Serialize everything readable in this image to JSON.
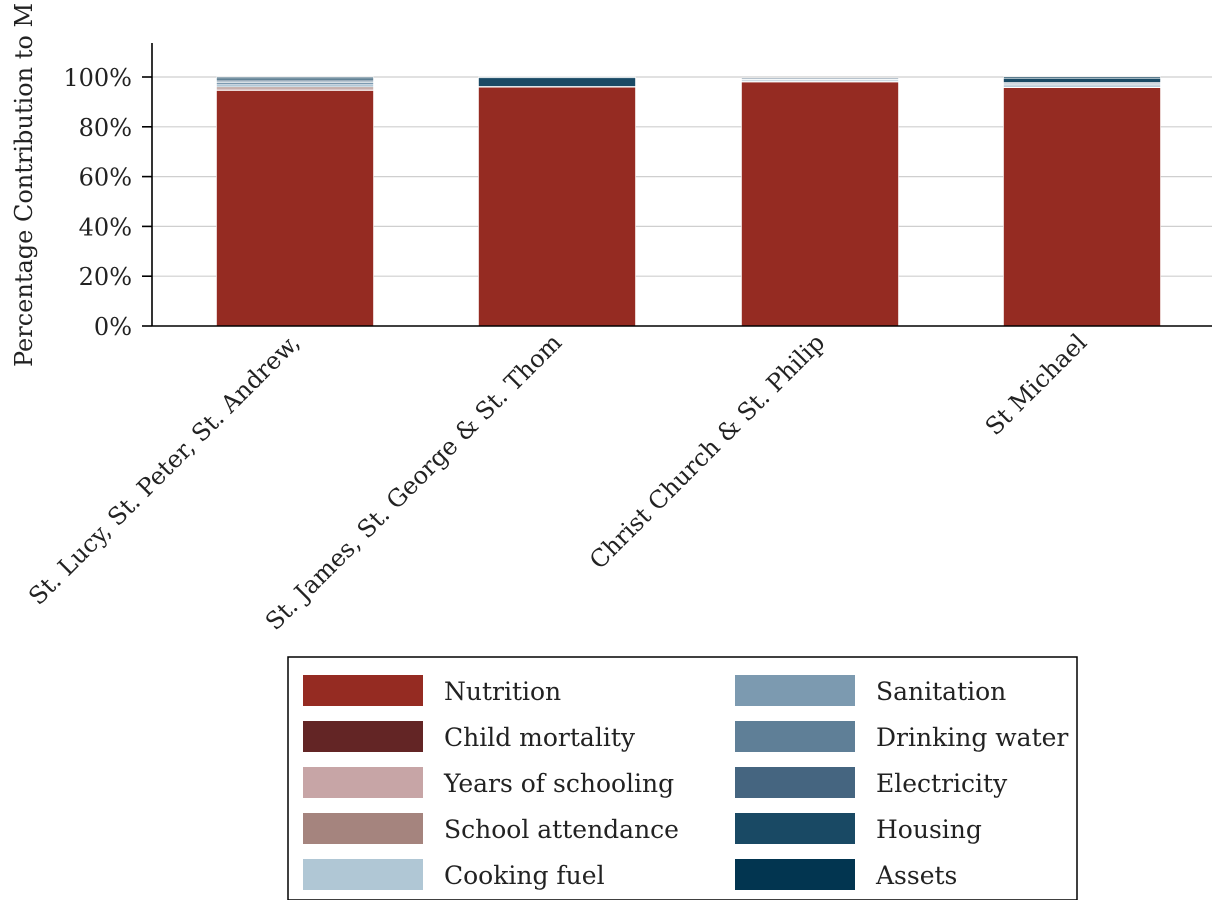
{
  "chart_data": {
    "type": "bar",
    "stacked": true,
    "title": "",
    "xlabel": "",
    "ylabel": "Percentage Contribution to M",
    "ylim": [
      0,
      100
    ],
    "yticks": [
      "0%",
      "20%",
      "40%",
      "60%",
      "80%",
      "100%"
    ],
    "ytick_values": [
      0,
      20,
      40,
      60,
      80,
      100
    ],
    "grid": true,
    "legend_position": "bottom",
    "categories": [
      "St. Lucy, St. Peter, St. Andrew,",
      "St. James, St. George & St. Thom",
      "Christ Church & St. Philip",
      "St Michael"
    ],
    "series": [
      {
        "name": "Nutrition",
        "color": "#952b22",
        "values": [
          94.6,
          96.0,
          98.0,
          95.8
        ]
      },
      {
        "name": "Child mortality",
        "color": "#632525",
        "values": [
          0.0,
          0.0,
          0.0,
          0.0
        ]
      },
      {
        "name": "Years of schooling",
        "color": "#c7a5a6",
        "values": [
          0.6,
          0.1,
          0.2,
          0.1
        ]
      },
      {
        "name": "School attendance",
        "color": "#a5847e",
        "values": [
          0.8,
          0.0,
          0.0,
          0.0
        ]
      },
      {
        "name": "Cooking fuel",
        "color": "#b0c7d5",
        "values": [
          0.9,
          0.0,
          0.3,
          0.6
        ]
      },
      {
        "name": "Sanitation",
        "color": "#7c9ab0",
        "values": [
          0.9,
          0.1,
          0.4,
          0.5
        ]
      },
      {
        "name": "Drinking water",
        "color": "#5f7f97",
        "values": [
          0.5,
          0.0,
          0.3,
          0.4
        ]
      },
      {
        "name": "Electricity",
        "color": "#456580",
        "values": [
          0.5,
          0.0,
          0.4,
          0.4
        ]
      },
      {
        "name": "Housing",
        "color": "#194964",
        "values": [
          0.8,
          3.5,
          0.0,
          1.7
        ]
      },
      {
        "name": "Assets",
        "color": "#023550",
        "values": [
          0.4,
          0.3,
          0.0,
          0.5
        ]
      }
    ]
  }
}
